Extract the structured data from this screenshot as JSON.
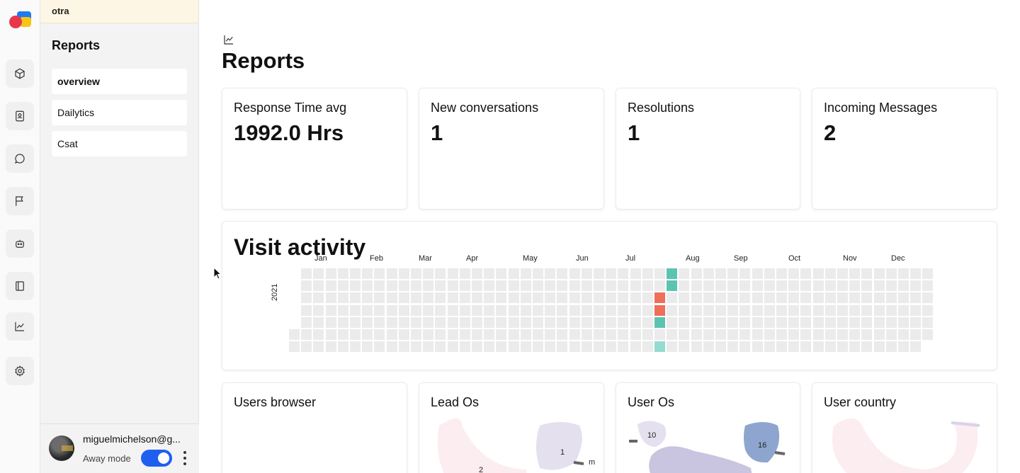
{
  "app": {
    "workspace": "otra"
  },
  "rail": {
    "icons": [
      "box-icon",
      "contact-icon",
      "chat-icon",
      "flag-icon",
      "bot-icon",
      "book-icon",
      "chart-icon",
      "gear-icon"
    ]
  },
  "sidebar": {
    "title": "Reports",
    "items": [
      {
        "label": "overview"
      },
      {
        "label": "Dailytics"
      },
      {
        "label": "Csat"
      }
    ]
  },
  "user": {
    "email": "miguelmichelson@g...",
    "away_label": "Away mode",
    "away_enabled": true
  },
  "main": {
    "title": "Reports",
    "stats": [
      {
        "label": "Response Time avg",
        "value": "1992.0 Hrs"
      },
      {
        "label": "New conversations",
        "value": "1"
      },
      {
        "label": "Resolutions",
        "value": "1"
      },
      {
        "label": "Incoming Messages",
        "value": "2"
      }
    ],
    "visit": {
      "title": "Visit activity",
      "year": "2021",
      "months": [
        "Jan",
        "Feb",
        "Mar",
        "Apr",
        "May",
        "Jun",
        "Jul",
        "Aug",
        "Sep",
        "Oct",
        "Nov",
        "Dec"
      ]
    },
    "bottom_cards": [
      {
        "label": "Users browser"
      },
      {
        "label": "Lead Os",
        "numbers": [
          "1",
          "2",
          "m"
        ]
      },
      {
        "label": "User Os",
        "numbers": [
          "10",
          "16"
        ]
      },
      {
        "label": "User country"
      }
    ]
  },
  "colors": {
    "accent": "#1f5ff0",
    "heat_teal": "#5bc4b0",
    "heat_red": "#ee6e5a",
    "heat_light": "#93dccf",
    "heat_empty": "#ebebeb"
  }
}
